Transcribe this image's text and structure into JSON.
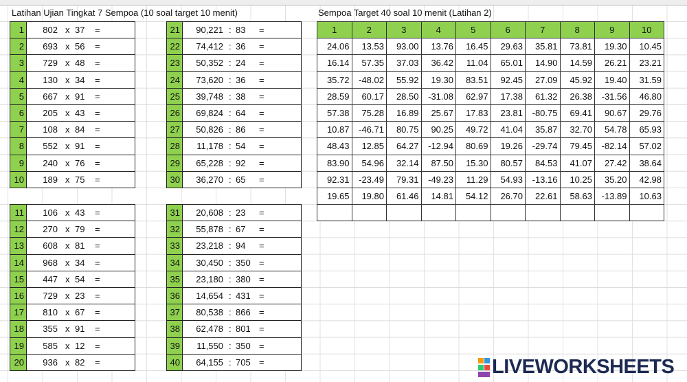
{
  "left_title": "Latihan Ujian Tingkat 7 Sempoa (10 soal target 10 menit)",
  "right_title": "Sempoa Target 40 soal 10 menit (Latihan 2)",
  "multiplication": {
    "operator": "x",
    "equals": "=",
    "rows": [
      [
        "1",
        "802",
        "37"
      ],
      [
        "2",
        "693",
        "56"
      ],
      [
        "3",
        "729",
        "48"
      ],
      [
        "4",
        "130",
        "34"
      ],
      [
        "5",
        "667",
        "91"
      ],
      [
        "6",
        "205",
        "43"
      ],
      [
        "7",
        "108",
        "84"
      ],
      [
        "8",
        "552",
        "91"
      ],
      [
        "9",
        "240",
        "76"
      ],
      [
        "10",
        "189",
        "75"
      ],
      [
        "11",
        "106",
        "43"
      ],
      [
        "12",
        "270",
        "79"
      ],
      [
        "13",
        "608",
        "81"
      ],
      [
        "14",
        "968",
        "34"
      ],
      [
        "15",
        "447",
        "54"
      ],
      [
        "16",
        "729",
        "23"
      ],
      [
        "17",
        "810",
        "67"
      ],
      [
        "18",
        "355",
        "91"
      ],
      [
        "19",
        "585",
        "12"
      ],
      [
        "20",
        "936",
        "82"
      ]
    ]
  },
  "division": {
    "operator": ":",
    "equals": "=",
    "rows": [
      [
        "21",
        "90,221",
        "83"
      ],
      [
        "22",
        "74,412",
        "36"
      ],
      [
        "23",
        "50,352",
        "24"
      ],
      [
        "24",
        "73,620",
        "36"
      ],
      [
        "25",
        "39,748",
        "38"
      ],
      [
        "26",
        "69,824",
        "64"
      ],
      [
        "27",
        "50,826",
        "86"
      ],
      [
        "28",
        "11,178",
        "54"
      ],
      [
        "29",
        "65,228",
        "92"
      ],
      [
        "30",
        "36,270",
        "65"
      ],
      [
        "31",
        "20,608",
        "23"
      ],
      [
        "32",
        "55,878",
        "67"
      ],
      [
        "33",
        "23,218",
        "94"
      ],
      [
        "34",
        "30,450",
        "350"
      ],
      [
        "35",
        "23,180",
        "380"
      ],
      [
        "36",
        "14,654",
        "431"
      ],
      [
        "37",
        "80,538",
        "866"
      ],
      [
        "38",
        "62,478",
        "801"
      ],
      [
        "39",
        "11,550",
        "350"
      ],
      [
        "40",
        "64,155",
        "705"
      ]
    ]
  },
  "table": {
    "header": [
      "1",
      "2",
      "3",
      "4",
      "5",
      "6",
      "7",
      "8",
      "9",
      "10"
    ],
    "rows": [
      [
        "24.06",
        "13.53",
        "93.00",
        "13.76",
        "16.45",
        "29.63",
        "35.81",
        "73.81",
        "19.30",
        "10.45"
      ],
      [
        "16.14",
        "57.35",
        "37.03",
        "36.42",
        "11.04",
        "65.01",
        "14.90",
        "14.59",
        "26.21",
        "23.21"
      ],
      [
        "35.72",
        "-48.02",
        "55.92",
        "19.30",
        "83.51",
        "92.45",
        "27.09",
        "45.92",
        "19.40",
        "31.59"
      ],
      [
        "28.59",
        "60.17",
        "28.50",
        "-31.08",
        "62.97",
        "17.38",
        "61.32",
        "26.38",
        "-31.56",
        "46.80"
      ],
      [
        "57.38",
        "75.28",
        "16.89",
        "25.67",
        "17.83",
        "23.81",
        "-80.75",
        "69.41",
        "90.67",
        "29.76"
      ],
      [
        "10.87",
        "-46.71",
        "80.75",
        "90.25",
        "49.72",
        "41.04",
        "35.87",
        "32.70",
        "54.78",
        "65.93"
      ],
      [
        "48.43",
        "12.85",
        "64.27",
        "-12.94",
        "80.69",
        "19.26",
        "-29.74",
        "79.45",
        "-82.14",
        "57.02"
      ],
      [
        "83.90",
        "54.96",
        "32.14",
        "87.50",
        "15.30",
        "80.57",
        "84.53",
        "41.07",
        "27.42",
        "38.64"
      ],
      [
        "92.31",
        "-23.49",
        "79.31",
        "-49.23",
        "11.29",
        "54.93",
        "-13.16",
        "10.25",
        "35.20",
        "42.98"
      ],
      [
        "19.65",
        "19.80",
        "61.46",
        "14.81",
        "54.12",
        "26.70",
        "22.61",
        "58.63",
        "-13.89",
        "10.63"
      ]
    ]
  },
  "watermark": "LIVEWORKSHEETS"
}
